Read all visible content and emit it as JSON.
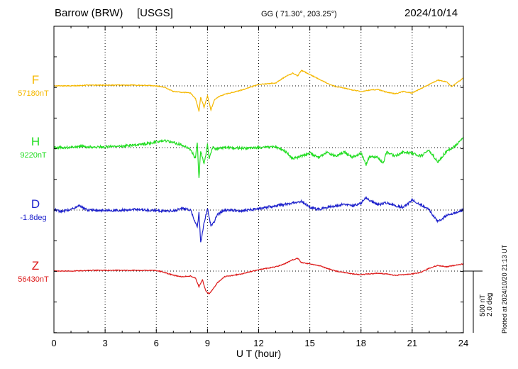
{
  "header": {
    "station": "Barrow (BRW)",
    "source": "[USGS]",
    "coords": "GG ( 71.30°, 203.25°)",
    "date": "2024/10/14"
  },
  "footer_note": "Plotted at 2024/10/20 21:13 UT",
  "chart_data": {
    "type": "line",
    "xlabel": "U T (hour)",
    "xlim": [
      0,
      24
    ],
    "xticks": [
      "0",
      "3",
      "6",
      "9",
      "12",
      "15",
      "18",
      "21",
      "24"
    ],
    "scale_bar": {
      "label1": "500 nT",
      "label2": "2.0 deg"
    },
    "series": [
      {
        "name": "F",
        "baseline_label": "57180nT",
        "color": "#f5b800",
        "points": [
          [
            0,
            0
          ],
          [
            1,
            0
          ],
          [
            2,
            -5
          ],
          [
            3,
            -5
          ],
          [
            4,
            -5
          ],
          [
            5,
            -5
          ],
          [
            6,
            0
          ],
          [
            6.5,
            10
          ],
          [
            7,
            40
          ],
          [
            7.5,
            45
          ],
          [
            8,
            50
          ],
          [
            8.3,
            90
          ],
          [
            8.5,
            180
          ],
          [
            8.6,
            80
          ],
          [
            8.8,
            150
          ],
          [
            9,
            70
          ],
          [
            9.2,
            170
          ],
          [
            9.4,
            100
          ],
          [
            9.6,
            80
          ],
          [
            10,
            60
          ],
          [
            11,
            30
          ],
          [
            12,
            -10
          ],
          [
            13,
            -20
          ],
          [
            13.5,
            -60
          ],
          [
            14,
            -90
          ],
          [
            14.3,
            -70
          ],
          [
            14.5,
            -110
          ],
          [
            15,
            -80
          ],
          [
            15.5,
            -50
          ],
          [
            16,
            -20
          ],
          [
            16.5,
            5
          ],
          [
            17,
            15
          ],
          [
            17.5,
            30
          ],
          [
            18,
            40
          ],
          [
            18.5,
            30
          ],
          [
            19,
            25
          ],
          [
            19.5,
            45
          ],
          [
            20,
            55
          ],
          [
            20.5,
            40
          ],
          [
            21,
            50
          ],
          [
            21.5,
            20
          ],
          [
            22,
            -10
          ],
          [
            22.5,
            -40
          ],
          [
            23,
            -30
          ],
          [
            23.3,
            5
          ],
          [
            23.5,
            -10
          ],
          [
            24,
            -55
          ]
        ]
      },
      {
        "name": "H",
        "baseline_label": "9220nT",
        "color": "#22dd22",
        "points": [
          [
            0,
            0
          ],
          [
            1,
            0
          ],
          [
            1.5,
            -10
          ],
          [
            2,
            -5
          ],
          [
            3,
            -5
          ],
          [
            4,
            -10
          ],
          [
            5,
            -20
          ],
          [
            6,
            -40
          ],
          [
            6.5,
            -50
          ],
          [
            7,
            -35
          ],
          [
            7.5,
            -20
          ],
          [
            8,
            10
          ],
          [
            8.3,
            80
          ],
          [
            8.4,
            -40
          ],
          [
            8.5,
            220
          ],
          [
            8.6,
            20
          ],
          [
            8.8,
            120
          ],
          [
            9,
            -20
          ],
          [
            9.1,
            80
          ],
          [
            9.3,
            0
          ],
          [
            9.5,
            10
          ],
          [
            10,
            0
          ],
          [
            11,
            5
          ],
          [
            12,
            0
          ],
          [
            13,
            -5
          ],
          [
            13.5,
            20
          ],
          [
            14,
            80
          ],
          [
            14.5,
            60
          ],
          [
            15,
            40
          ],
          [
            15.5,
            70
          ],
          [
            16,
            30
          ],
          [
            16.5,
            60
          ],
          [
            17,
            30
          ],
          [
            17.5,
            70
          ],
          [
            18,
            40
          ],
          [
            18.3,
            120
          ],
          [
            18.5,
            60
          ],
          [
            19,
            70
          ],
          [
            19.3,
            110
          ],
          [
            19.5,
            30
          ],
          [
            20,
            60
          ],
          [
            20.5,
            30
          ],
          [
            21,
            40
          ],
          [
            21.5,
            60
          ],
          [
            22,
            20
          ],
          [
            22.5,
            100
          ],
          [
            23,
            30
          ],
          [
            23.5,
            -10
          ],
          [
            24,
            -75
          ]
        ]
      },
      {
        "name": "D",
        "baseline_label": "-1.8deg",
        "color": "#1e22cc",
        "points": [
          [
            0,
            0
          ],
          [
            0.5,
            10
          ],
          [
            1,
            -5
          ],
          [
            1.5,
            -30
          ],
          [
            2,
            0
          ],
          [
            3,
            5
          ],
          [
            4,
            0
          ],
          [
            5,
            -5
          ],
          [
            6,
            5
          ],
          [
            7,
            5
          ],
          [
            7.5,
            -10
          ],
          [
            8,
            0
          ],
          [
            8.2,
            60
          ],
          [
            8.4,
            120
          ],
          [
            8.5,
            20
          ],
          [
            8.6,
            230
          ],
          [
            8.8,
            90
          ],
          [
            9,
            -10
          ],
          [
            9.2,
            110
          ],
          [
            9.4,
            80
          ],
          [
            9.6,
            30
          ],
          [
            10,
            0
          ],
          [
            11,
            5
          ],
          [
            12,
            -10
          ],
          [
            12.5,
            -20
          ],
          [
            13,
            -30
          ],
          [
            13.5,
            -40
          ],
          [
            14,
            -50
          ],
          [
            14.5,
            -60
          ],
          [
            15,
            -20
          ],
          [
            15.5,
            -5
          ],
          [
            16,
            -20
          ],
          [
            16.5,
            -30
          ],
          [
            17,
            -40
          ],
          [
            17.5,
            -30
          ],
          [
            18,
            -50
          ],
          [
            18.3,
            -90
          ],
          [
            18.6,
            -60
          ],
          [
            19,
            -40
          ],
          [
            19.5,
            -50
          ],
          [
            20,
            -30
          ],
          [
            20.5,
            -20
          ],
          [
            21,
            -70
          ],
          [
            21.5,
            -40
          ],
          [
            22,
            0
          ],
          [
            22.5,
            80
          ],
          [
            23,
            40
          ],
          [
            23.5,
            20
          ],
          [
            24,
            0
          ]
        ]
      },
      {
        "name": "Z",
        "baseline_label": "56430nT",
        "color": "#dd1a1a",
        "points": [
          [
            0,
            0
          ],
          [
            1,
            0
          ],
          [
            2,
            -5
          ],
          [
            3,
            -5
          ],
          [
            4,
            -5
          ],
          [
            5,
            -5
          ],
          [
            6,
            -5
          ],
          [
            6.5,
            10
          ],
          [
            7,
            30
          ],
          [
            7.5,
            40
          ],
          [
            8,
            35
          ],
          [
            8.3,
            50
          ],
          [
            8.5,
            110
          ],
          [
            8.7,
            60
          ],
          [
            8.9,
            140
          ],
          [
            9.1,
            160
          ],
          [
            9.3,
            130
          ],
          [
            9.6,
            80
          ],
          [
            10,
            40
          ],
          [
            11,
            20
          ],
          [
            12,
            -10
          ],
          [
            13,
            -30
          ],
          [
            13.5,
            -50
          ],
          [
            14,
            -80
          ],
          [
            14.3,
            -90
          ],
          [
            14.5,
            -60
          ],
          [
            15,
            -50
          ],
          [
            15.5,
            -40
          ],
          [
            16,
            -20
          ],
          [
            16.5,
            0
          ],
          [
            17,
            10
          ],
          [
            17.5,
            20
          ],
          [
            18,
            25
          ],
          [
            18.5,
            20
          ],
          [
            19,
            15
          ],
          [
            19.5,
            20
          ],
          [
            20,
            30
          ],
          [
            20.5,
            25
          ],
          [
            21,
            20
          ],
          [
            21.5,
            10
          ],
          [
            22,
            -20
          ],
          [
            22.5,
            -40
          ],
          [
            23,
            -30
          ],
          [
            23.5,
            -40
          ],
          [
            24,
            -50
          ]
        ]
      }
    ]
  }
}
